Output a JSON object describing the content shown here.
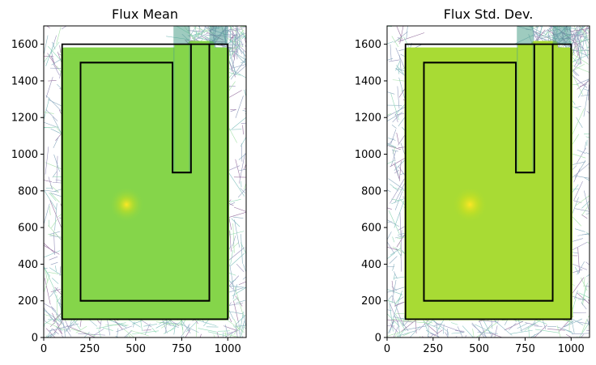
{
  "chart_data": [
    {
      "type": "heatmap",
      "title": "Flux Mean",
      "xlim": [
        0,
        1100
      ],
      "ylim": [
        0,
        1700
      ],
      "xticks": [
        0,
        250,
        500,
        750,
        1000
      ],
      "yticks": [
        0,
        200,
        400,
        600,
        800,
        1000,
        1200,
        1400,
        1600
      ],
      "colormap": "viridis",
      "fill_color": "#85d54a",
      "hot_spot": [
        450,
        725
      ],
      "geometry_outer": [
        [
          100,
          100
        ],
        [
          1000,
          100
        ],
        [
          1000,
          1600
        ],
        [
          900,
          1600
        ],
        [
          900,
          200
        ],
        [
          200,
          200
        ],
        [
          200,
          1500
        ],
        [
          700,
          1500
        ],
        [
          700,
          900
        ],
        [
          800,
          900
        ],
        [
          800,
          1600
        ],
        [
          100,
          1600
        ]
      ],
      "geometry_inner": [
        [
          200,
          200
        ],
        [
          900,
          200
        ],
        [
          900,
          1600
        ],
        [
          800,
          1600
        ],
        [
          800,
          900
        ],
        [
          700,
          900
        ],
        [
          700,
          1500
        ],
        [
          200,
          1500
        ]
      ]
    },
    {
      "type": "heatmap",
      "title": "Flux Std. Dev.",
      "xlim": [
        0,
        1100
      ],
      "ylim": [
        0,
        1700
      ],
      "xticks": [
        0,
        250,
        500,
        750,
        1000
      ],
      "yticks": [
        0,
        200,
        400,
        600,
        800,
        1000,
        1200,
        1400,
        1600
      ],
      "colormap": "viridis",
      "fill_color": "#a8db34",
      "hot_spot": [
        450,
        725
      ],
      "geometry_outer": [
        [
          100,
          100
        ],
        [
          1000,
          100
        ],
        [
          1000,
          1600
        ],
        [
          900,
          1600
        ],
        [
          900,
          200
        ],
        [
          200,
          200
        ],
        [
          200,
          1500
        ],
        [
          700,
          1500
        ],
        [
          700,
          900
        ],
        [
          800,
          900
        ],
        [
          800,
          1600
        ],
        [
          100,
          1600
        ]
      ],
      "geometry_inner": [
        [
          200,
          200
        ],
        [
          900,
          200
        ],
        [
          900,
          1600
        ],
        [
          800,
          1600
        ],
        [
          800,
          900
        ],
        [
          700,
          900
        ],
        [
          700,
          1500
        ],
        [
          200,
          1500
        ]
      ]
    }
  ]
}
